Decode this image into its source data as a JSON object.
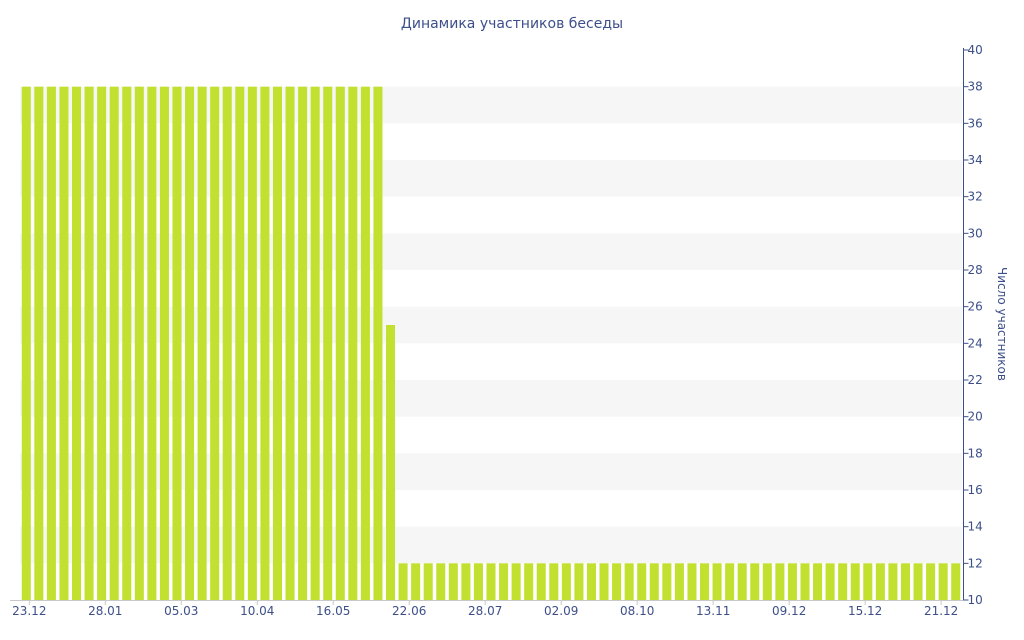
{
  "chart_data": {
    "type": "bar",
    "title": "Динамика участников беседы",
    "xlabel": "",
    "ylabel": "Число участников",
    "ylim": [
      10,
      40
    ],
    "y_ticks": [
      10,
      12,
      14,
      16,
      18,
      20,
      22,
      24,
      26,
      28,
      30,
      32,
      34,
      36,
      38,
      40
    ],
    "x_tick_labels": [
      "23.12",
      "28.01",
      "05.03",
      "10.04",
      "16.05",
      "22.06",
      "28.07",
      "02.09",
      "08.10",
      "13.11",
      "09.12",
      "15.12",
      "21.12"
    ],
    "y_axis_position": "right",
    "grid": "alternating horizontal bands",
    "bar_color": "#c2e030",
    "axis_color": "#3d4f8a",
    "series": [
      {
        "values": [
          38,
          38,
          38,
          38,
          38,
          38,
          38,
          38,
          38,
          38,
          38,
          38,
          38,
          38,
          38,
          38,
          38,
          38,
          38,
          38,
          38,
          38,
          38,
          38,
          38,
          38,
          38,
          38,
          38,
          25,
          12,
          12,
          12,
          12,
          12,
          12,
          12,
          12,
          12,
          12,
          12,
          12,
          12,
          12,
          12,
          12,
          12,
          12,
          12,
          12,
          12,
          12,
          12,
          12,
          12,
          12,
          12,
          12,
          12,
          12,
          12,
          12,
          12,
          12,
          12,
          12,
          12,
          12,
          12,
          12,
          12,
          12,
          12,
          12,
          12
        ]
      }
    ]
  }
}
